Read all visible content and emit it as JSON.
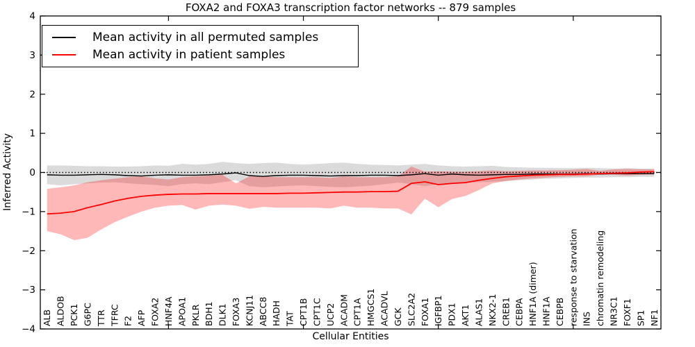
{
  "chart_data": {
    "type": "line",
    "title": "FOXA2 and FOXA3 transcription factor networks -- 879 samples",
    "xlabel": "Cellular Entities",
    "ylabel": "Inferred Activity",
    "ylim": [
      -4,
      4
    ],
    "yticks": [
      "4",
      "3",
      "2",
      "1",
      "0",
      "−1",
      "−2",
      "−3",
      "−4"
    ],
    "x_major_ticks": [
      10,
      20,
      30,
      40
    ],
    "grid": false,
    "legend_position": "upper left",
    "zero_line": {
      "y": 0,
      "style": "dotted",
      "color": "#000000"
    },
    "categories": [
      "ALB",
      "ALDOB",
      "PCK1",
      "G6PC",
      "TTR",
      "TFRC",
      "F2",
      "AFP",
      "FOXA2",
      "HNF4A",
      "APOA1",
      "PKLR",
      "BDH1",
      "DLK1",
      "FOXA3",
      "KCNJ11",
      "ABCC8",
      "HADH",
      "TAT",
      "CPT1B",
      "CPT1C",
      "UCP2",
      "ACADM",
      "CPT1A",
      "HMGCS1",
      "ACADVL",
      "GCK",
      "SLC2A2",
      "FOXA1",
      "IGFBP1",
      "PDX1",
      "AKT1",
      "ALAS1",
      "NKX2-1",
      "CREB1",
      "CEBPA",
      "HNF1A (dimer)",
      "HNF1A",
      "CEBPB",
      "response to starvation",
      "INS",
      "chromatin remodeling",
      "NR3C1",
      "FOXF1",
      "SP1",
      "NF1"
    ],
    "series": [
      {
        "key": "permuted",
        "name": "Mean activity in all permuted samples",
        "color": "#000000",
        "values": [
          -0.06,
          -0.07,
          -0.07,
          -0.06,
          -0.05,
          -0.06,
          -0.08,
          -0.09,
          -0.07,
          -0.06,
          -0.07,
          -0.07,
          -0.06,
          -0.04,
          -0.01,
          -0.08,
          -0.1,
          -0.08,
          -0.07,
          -0.07,
          -0.08,
          -0.09,
          -0.08,
          -0.08,
          -0.07,
          -0.07,
          -0.08,
          -0.06,
          -0.03,
          -0.07,
          -0.04,
          -0.06,
          -0.07,
          -0.06,
          -0.05,
          -0.05,
          -0.04,
          -0.04,
          -0.04,
          -0.04,
          -0.03,
          -0.04,
          -0.03,
          -0.03,
          -0.03,
          -0.03
        ],
        "band": {
          "upper": [
            0.18,
            0.18,
            0.17,
            0.16,
            0.16,
            0.15,
            0.15,
            0.16,
            0.18,
            0.17,
            0.22,
            0.2,
            0.22,
            0.27,
            0.24,
            0.22,
            0.24,
            0.25,
            0.22,
            0.2,
            0.22,
            0.24,
            0.25,
            0.22,
            0.2,
            0.19,
            0.18,
            0.2,
            0.22,
            0.18,
            0.16,
            0.15,
            0.16,
            0.17,
            0.14,
            0.13,
            0.12,
            0.12,
            0.11,
            0.11,
            0.12,
            0.11,
            0.1,
            0.11,
            0.1,
            0.1
          ],
          "lower": [
            -0.3,
            -0.33,
            -0.3,
            -0.28,
            -0.26,
            -0.25,
            -0.28,
            -0.3,
            -0.32,
            -0.35,
            -0.3,
            -0.28,
            -0.3,
            -0.25,
            -0.2,
            -0.35,
            -0.38,
            -0.36,
            -0.34,
            -0.33,
            -0.35,
            -0.37,
            -0.38,
            -0.36,
            -0.34,
            -0.3,
            -0.26,
            -0.3,
            -0.35,
            -0.3,
            -0.28,
            -0.26,
            -0.25,
            -0.24,
            -0.22,
            -0.2,
            -0.18,
            -0.16,
            -0.15,
            -0.14,
            -0.13,
            -0.13,
            -0.12,
            -0.12,
            -0.11,
            -0.11
          ],
          "color": "rgba(0,0,0,0.14)"
        }
      },
      {
        "key": "patient",
        "name": "Mean activity in patient samples",
        "color": "#ff0000",
        "values": [
          -1.06,
          -1.04,
          -1.0,
          -0.9,
          -0.82,
          -0.73,
          -0.66,
          -0.61,
          -0.58,
          -0.56,
          -0.55,
          -0.55,
          -0.54,
          -0.54,
          -0.54,
          -0.54,
          -0.54,
          -0.54,
          -0.53,
          -0.53,
          -0.52,
          -0.51,
          -0.5,
          -0.5,
          -0.49,
          -0.49,
          -0.48,
          -0.28,
          -0.24,
          -0.31,
          -0.28,
          -0.26,
          -0.2,
          -0.15,
          -0.11,
          -0.09,
          -0.07,
          -0.06,
          -0.05,
          -0.05,
          -0.04,
          -0.03,
          -0.02,
          -0.01,
          0.01,
          0.02
        ],
        "band": {
          "upper": [
            -0.42,
            -0.38,
            -0.33,
            -0.25,
            -0.2,
            -0.16,
            -0.12,
            -0.1,
            -0.15,
            -0.18,
            -0.12,
            -0.1,
            -0.08,
            -0.06,
            -0.28,
            -0.1,
            -0.1,
            -0.12,
            -0.12,
            -0.12,
            -0.12,
            -0.14,
            -0.1,
            -0.12,
            -0.12,
            -0.12,
            -0.1,
            0.15,
            0.02,
            0.03,
            0.02,
            0.02,
            0.03,
            0.05,
            0.03,
            0.04,
            0.05,
            0.05,
            0.06,
            0.07,
            0.09,
            0.04,
            0.08,
            0.09,
            0.08,
            0.08
          ],
          "lower": [
            -1.5,
            -1.58,
            -1.73,
            -1.67,
            -1.46,
            -1.27,
            -1.13,
            -1.0,
            -0.9,
            -0.85,
            -0.83,
            -0.95,
            -0.85,
            -0.82,
            -0.85,
            -0.93,
            -0.88,
            -0.9,
            -0.9,
            -0.9,
            -0.9,
            -0.92,
            -0.85,
            -0.9,
            -0.9,
            -0.92,
            -0.92,
            -1.07,
            -0.67,
            -0.89,
            -0.68,
            -0.6,
            -0.45,
            -0.28,
            -0.22,
            -0.18,
            -0.15,
            -0.13,
            -0.11,
            -0.1,
            -0.1,
            -0.05,
            -0.06,
            -0.08,
            -0.06,
            -0.05
          ],
          "color": "rgba(255,0,0,0.28)"
        }
      }
    ]
  }
}
